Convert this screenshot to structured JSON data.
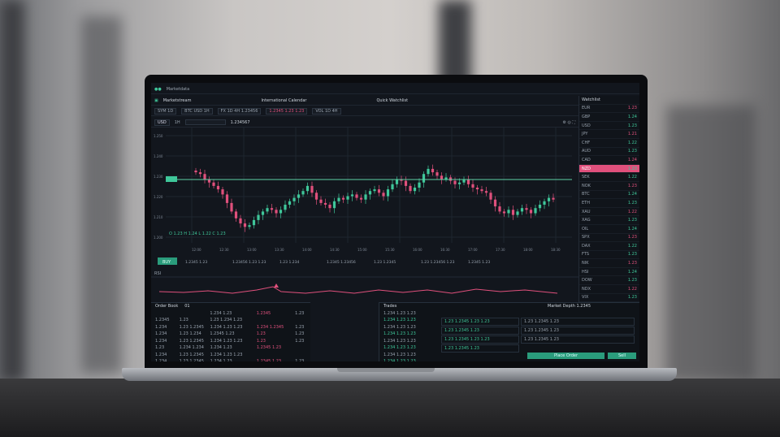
{
  "topbar": {
    "title": "Marketdata"
  },
  "toolbar": {
    "app": "Marketstream",
    "center": "International Calendar",
    "right": "Quick Watchlist",
    "groups": [
      "SYM 1D",
      "BTC USD 1H",
      "FX 1D 4H 1.23456",
      "1.2345 1.23 1.23",
      "VOL 1D 4H"
    ]
  },
  "chart_toolbar": {
    "symbol": "USD",
    "interval": "1H",
    "search": "",
    "price": "1.234567"
  },
  "chart": {
    "legend": "O 1.23 H 1.24 L 1.22 C 1.23",
    "y_ticks": [
      "1.250",
      "1.240",
      "1.230",
      "1.220",
      "1.210",
      "1.200"
    ],
    "x_ticks": [
      "12:00",
      "12:30",
      "13:00",
      "13:30",
      "14:00",
      "14:30",
      "15:00",
      "15:30",
      "16:00",
      "16:30",
      "17:00",
      "17:30",
      "18:00",
      "18:30"
    ],
    "level": "1.2340",
    "candles": [
      78,
      76,
      70,
      66,
      62,
      58,
      52,
      42,
      32,
      24,
      18,
      14,
      16,
      22,
      28,
      32,
      36,
      34,
      30,
      34,
      40,
      44,
      48,
      52,
      56,
      62,
      54,
      46,
      42,
      40,
      36,
      44,
      48,
      46,
      50,
      52,
      48,
      46,
      52,
      56,
      58,
      54,
      50,
      58,
      64,
      70,
      68,
      62,
      56,
      60,
      66,
      76,
      82,
      78,
      74,
      70,
      72,
      68,
      64,
      66,
      70,
      64,
      60,
      58,
      56,
      54,
      46,
      38,
      32,
      30,
      34,
      28,
      32,
      36,
      34,
      30,
      36,
      40,
      44,
      48,
      46
    ],
    "colors": {
      "up": "#3fc79a",
      "down": "#e0507c",
      "level": "#5fd3a8"
    }
  },
  "info_row": {
    "button": "BUY",
    "items": [
      "1.2345 1.23",
      "1.23456 1.23 1.23",
      "1.23 1.234",
      "1.2345 1.23456",
      "1.23 1.2345",
      "1.23 1.23456 1.23",
      "1.2345 1.23"
    ]
  },
  "oscillator": {
    "label": "RSI"
  },
  "order_book": {
    "title": "Order Book",
    "tab": "01",
    "rows": [
      [
        "",
        "",
        "1.234 1.23",
        "1.2345",
        "1.23"
      ],
      [
        "1.2345",
        "1.23",
        "1.23 1.234 1.23",
        "",
        ""
      ],
      [
        "1.234",
        "1.23 1.2345",
        "1.234 1.23 1.23",
        "1.234 1.2345",
        "1.23"
      ],
      [
        "1.234",
        "1.23 1.234",
        "1.2345 1.23",
        "1.23",
        "1.23"
      ],
      [
        "1.234",
        "1.23 1.2345",
        "1.234 1.23 1.23",
        "1.23",
        "1.23"
      ],
      [
        "1.23",
        "1.234 1.234",
        "1.234 1.23",
        "1.2345 1.23",
        ""
      ],
      [
        "1.234",
        "1.23 1.2345",
        "1.234 1.23 1.23",
        "",
        ""
      ],
      [
        "1.234",
        "1.23 1.2345",
        "1.234 1.23",
        "1.2345 1.23",
        "1.23"
      ]
    ]
  },
  "trades": {
    "title": "Trades",
    "rows": [
      "1.234 1.23 1.23",
      "1.234 1.23 1.23",
      "1.234 1.23 1.23",
      "1.234 1.23 1.23",
      "1.234 1.23 1.23",
      "1.234 1.23 1.23",
      "1.234 1.23 1.23",
      "1.234 1.23 1.23"
    ]
  },
  "depth": {
    "title": "Market Depth 1.2345",
    "left": [
      "1.23 1.2345 1.23 1.23",
      "1.23 1.2345 1.23",
      "1.23 1.2345 1.23 1.23",
      "1.23 1.2345 1.23"
    ],
    "right": [
      "1.23 1.2345 1.23",
      "1.23 1.2345 1.23",
      "1.23 1.2345 1.23"
    ],
    "buy_label": "Place Order",
    "sell_label": "Sell"
  },
  "sidebar": {
    "header": "Watchlist",
    "rows": [
      [
        "EUR",
        "1.23"
      ],
      [
        "GBP",
        "1.24"
      ],
      [
        "USD",
        "1.23"
      ],
      [
        "JPY",
        "1.21"
      ],
      [
        "CHF",
        "1.22"
      ],
      [
        "AUD",
        "1.23"
      ],
      [
        "CAD",
        "1.24"
      ],
      [
        "NZD",
        "1.23"
      ],
      [
        "SEK",
        "1.22"
      ],
      [
        "NOK",
        "1.23"
      ],
      [
        "BTC",
        "1.24"
      ],
      [
        "ETH",
        "1.23"
      ],
      [
        "XAU",
        "1.22"
      ],
      [
        "XAG",
        "1.23"
      ],
      [
        "OIL",
        "1.24"
      ],
      [
        "SPX",
        "1.23"
      ],
      [
        "DAX",
        "1.22"
      ],
      [
        "FTS",
        "1.23"
      ],
      [
        "NIK",
        "1.23"
      ],
      [
        "HSI",
        "1.24"
      ],
      [
        "DOW",
        "1.23"
      ],
      [
        "NDX",
        "1.22"
      ],
      [
        "VIX",
        "1.23"
      ],
      [
        "TNX",
        "1.23"
      ]
    ],
    "highlight_index": 7
  }
}
